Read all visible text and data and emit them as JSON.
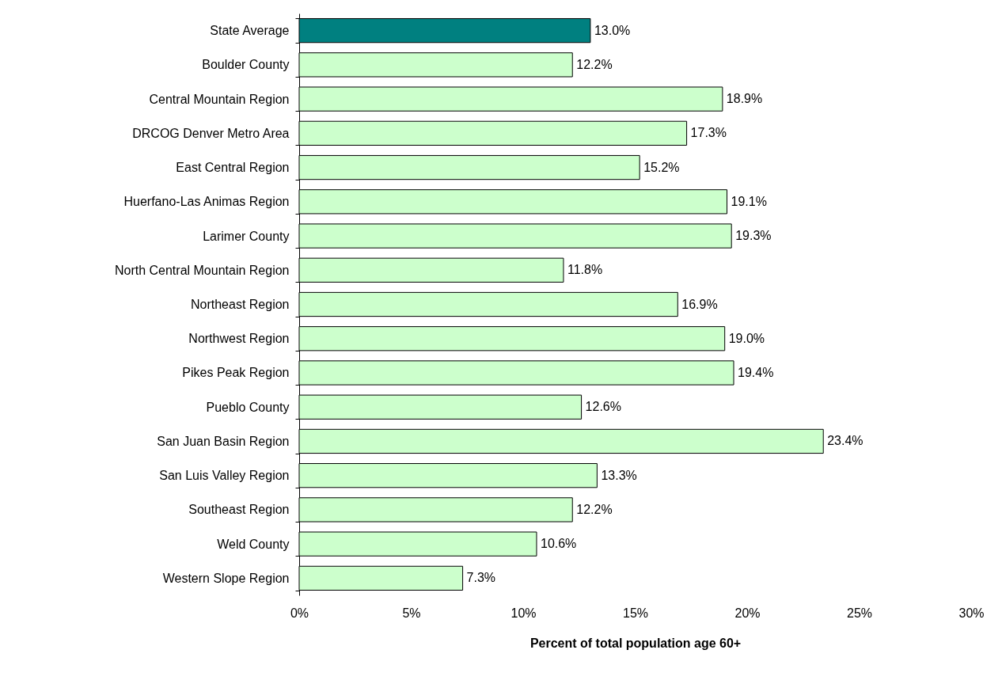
{
  "chart_data": {
    "type": "bar",
    "orientation": "horizontal",
    "xlabel": "Percent of total population age 60+",
    "categories": [
      "State Average",
      "Boulder County",
      "Central Mountain Region",
      "DRCOG Denver Metro Area",
      "East Central Region",
      "Huerfano-Las Animas Region",
      "Larimer County",
      "North Central Mountain Region",
      "Northeast Region",
      "Northwest Region",
      "Pikes Peak Region",
      "Pueblo County",
      "San Juan Basin Region",
      "San Luis Valley Region",
      "Southeast Region",
      "Weld County",
      "Western Slope Region"
    ],
    "values": [
      13.0,
      12.2,
      18.9,
      17.3,
      15.2,
      19.1,
      19.3,
      11.8,
      16.9,
      19.0,
      19.4,
      12.6,
      23.4,
      13.3,
      12.2,
      10.6,
      7.3
    ],
    "value_labels": [
      "13.0%",
      "12.2%",
      "18.9%",
      "17.3%",
      "15.2%",
      "19.1%",
      "19.3%",
      "11.8%",
      "16.9%",
      "19.0%",
      "19.4%",
      "12.6%",
      "23.4%",
      "13.3%",
      "12.2%",
      "10.6%",
      "7.3%"
    ],
    "colors": [
      "#008080",
      "#ccffcc",
      "#ccffcc",
      "#ccffcc",
      "#ccffcc",
      "#ccffcc",
      "#ccffcc",
      "#ccffcc",
      "#ccffcc",
      "#ccffcc",
      "#ccffcc",
      "#ccffcc",
      "#ccffcc",
      "#ccffcc",
      "#ccffcc",
      "#ccffcc",
      "#ccffcc"
    ],
    "xlim": [
      0,
      30
    ],
    "xticks": [
      {
        "value": 0,
        "label": "0%"
      },
      {
        "value": 5,
        "label": "5%"
      },
      {
        "value": 10,
        "label": "10%"
      },
      {
        "value": 15,
        "label": "15%"
      },
      {
        "value": 20,
        "label": "20%"
      },
      {
        "value": 25,
        "label": "25%"
      },
      {
        "value": 30,
        "label": "30%"
      }
    ],
    "grid": false
  }
}
